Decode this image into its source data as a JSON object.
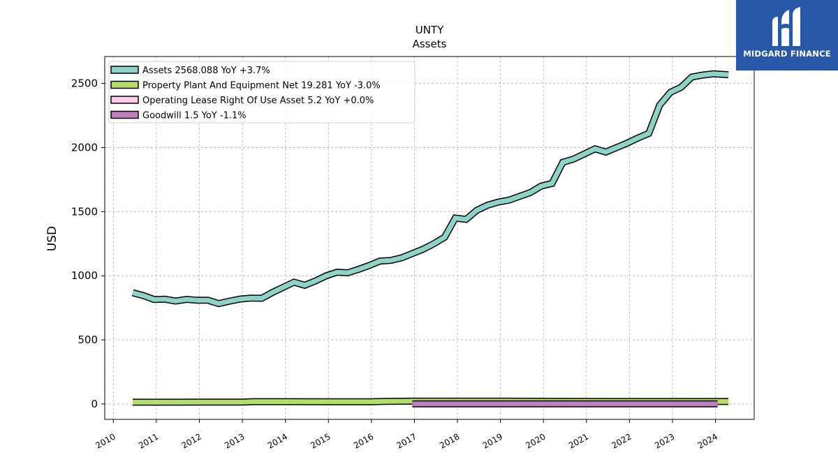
{
  "brand": {
    "name": "MIDGARD FINANCE",
    "bg_color": "#2a58a8",
    "icon": "midgard-m-logo-icon"
  },
  "chart_data": {
    "type": "area",
    "title": "UNTY",
    "subtitle": "Assets",
    "xlabel": "",
    "ylabel": "USD",
    "xlim": [
      2009.8,
      2024.9
    ],
    "ylim": [
      -120,
      2710
    ],
    "x_ticks": [
      "2010",
      "2011",
      "2012",
      "2013",
      "2014",
      "2015",
      "2016",
      "2017",
      "2018",
      "2019",
      "2020",
      "2021",
      "2022",
      "2023",
      "2024"
    ],
    "y_ticks": [
      0,
      500,
      1000,
      1500,
      2000,
      2500
    ],
    "grid": true,
    "legend_position": "top-left",
    "series": [
      {
        "name": "Assets",
        "legend_label": "Assets  2568.088 YoY +3.7%",
        "color": "#8dd3c7",
        "x": [
          2010.45,
          2010.7,
          2010.95,
          2011.2,
          2011.45,
          2011.7,
          2011.95,
          2012.2,
          2012.45,
          2012.7,
          2012.95,
          2013.2,
          2013.45,
          2013.7,
          2013.95,
          2014.2,
          2014.45,
          2014.7,
          2014.95,
          2015.2,
          2015.45,
          2015.7,
          2015.95,
          2016.2,
          2016.45,
          2016.7,
          2016.95,
          2017.2,
          2017.45,
          2017.7,
          2017.95,
          2018.2,
          2018.45,
          2018.7,
          2018.95,
          2019.2,
          2019.45,
          2019.7,
          2019.95,
          2020.2,
          2020.45,
          2020.7,
          2020.95,
          2021.2,
          2021.45,
          2021.7,
          2021.95,
          2022.2,
          2022.45,
          2022.7,
          2022.95,
          2023.2,
          2023.45,
          2023.7,
          2023.95,
          2024.3
        ],
        "values": [
          868,
          845,
          815,
          817,
          803,
          816,
          809,
          809,
          783,
          802,
          818,
          826,
          824,
          870,
          910,
          950,
          926,
          960,
          1000,
          1028,
          1023,
          1050,
          1080,
          1115,
          1120,
          1140,
          1173,
          1207,
          1250,
          1300,
          1450,
          1440,
          1510,
          1550,
          1575,
          1590,
          1620,
          1650,
          1700,
          1720,
          1885,
          1910,
          1950,
          1990,
          1965,
          2000,
          2035,
          2075,
          2110,
          2330,
          2430,
          2470,
          2550,
          2565,
          2575,
          2568.088
        ]
      },
      {
        "name": "Property Plant And Equipment Net",
        "legend_label": "Property Plant And Equipment Net  19.281 YoY -3.0%",
        "color": "#b3de69",
        "x": [
          2010.45,
          2011.0,
          2012.0,
          2013.0,
          2013.25,
          2014.0,
          2015.0,
          2016.0,
          2016.3,
          2017.0,
          2018.0,
          2019.0,
          2020.0,
          2021.0,
          2022.0,
          2023.0,
          2024.0,
          2024.3
        ],
        "values": [
          14,
          14,
          14.5,
          15,
          18,
          18,
          17.5,
          17,
          20,
          22,
          22,
          22,
          21,
          20,
          19.5,
          19.5,
          19.5,
          19.281
        ]
      },
      {
        "name": "Operating Lease Right Of Use Asset",
        "legend_label": "Operating Lease Right Of Use Asset  5.2 YoY +0.0%",
        "color": "#fccde5",
        "x": [],
        "values": []
      },
      {
        "name": "Goodwill",
        "legend_label": "Goodwill  1.5 YoY -1.1%",
        "color": "#bc80bd",
        "x": [
          2016.95,
          2020.0,
          2021.0,
          2022.0,
          2023.0,
          2024.05
        ],
        "values": [
          1.5,
          1.5,
          1.5,
          1.5,
          1.5,
          1.5
        ]
      }
    ]
  }
}
